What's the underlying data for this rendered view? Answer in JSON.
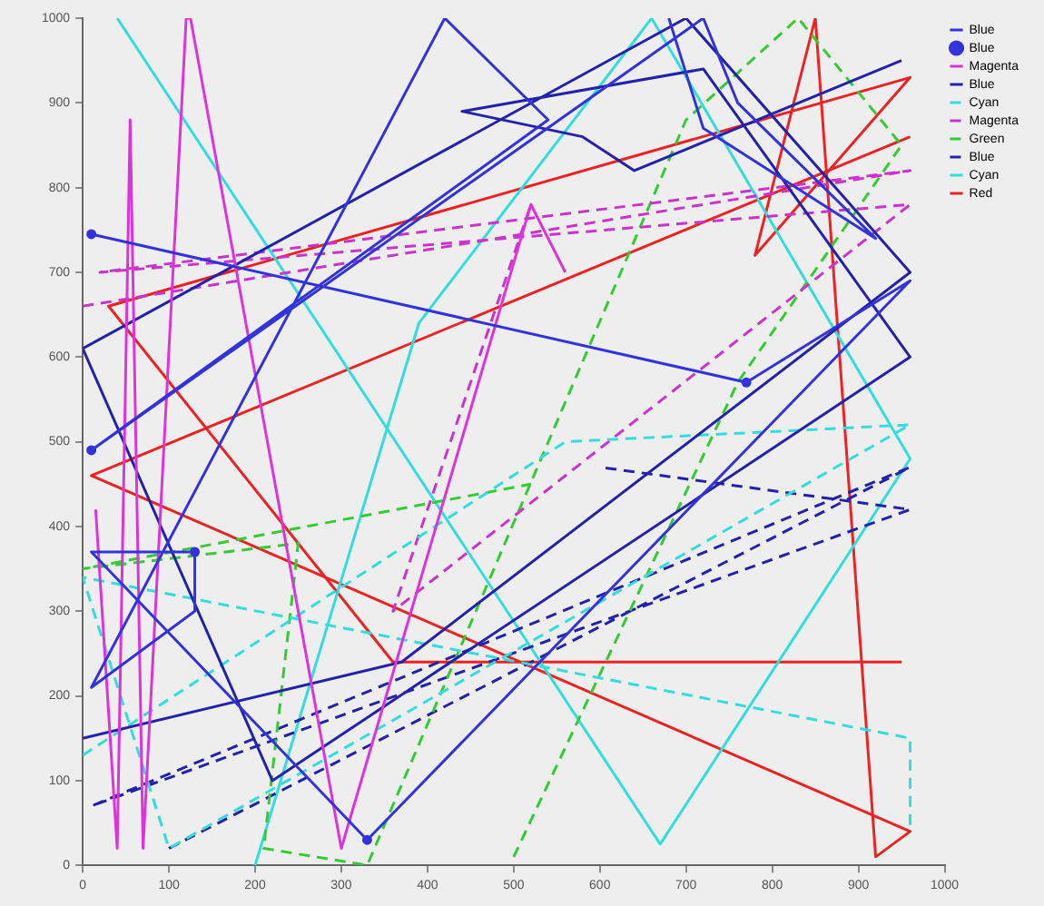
{
  "chart_data": {
    "type": "line",
    "xlim": [
      0,
      1000
    ],
    "ylim": [
      0,
      1000
    ],
    "xticks": [
      0,
      100,
      200,
      300,
      400,
      500,
      600,
      700,
      800,
      900,
      1000
    ],
    "yticks": [
      0,
      100,
      200,
      300,
      400,
      500,
      600,
      700,
      800,
      900,
      1000
    ],
    "grid": false,
    "legend": "top right",
    "marker": "none",
    "line_style": "solid",
    "series": [
      {
        "name": "Blue",
        "color": "#3333dd",
        "x": [
          10,
          770,
          960,
          330,
          10,
          130,
          130,
          10,
          420,
          540,
          10,
          720,
          760,
          920,
          720,
          680
        ],
        "values": [
          745,
          570,
          690,
          30,
          370,
          370,
          300,
          210,
          1000,
          880,
          490,
          1000,
          900,
          740,
          870,
          1000
        ]
      },
      {
        "name": "Blue",
        "color": "#3333dd",
        "type": "scatter",
        "marker": "circle",
        "x": [
          10,
          770,
          330,
          130,
          10
        ],
        "values": [
          745,
          570,
          30,
          370,
          490
        ]
      },
      {
        "name": "Magenta",
        "color": "#dd33dd",
        "x": [
          15,
          40,
          55,
          70,
          120,
          125,
          300,
          520,
          560
        ],
        "values": [
          420,
          20,
          880,
          20,
          1000,
          1000,
          20,
          780,
          700
        ]
      },
      {
        "name": "Blue",
        "color": "#2222aa",
        "x": [
          0,
          370,
          960,
          700,
          0,
          220,
          960,
          720,
          440,
          580,
          640,
          950
        ],
        "values": [
          150,
          240,
          700,
          1000,
          610,
          100,
          600,
          940,
          890,
          860,
          820,
          950
        ]
      },
      {
        "name": "Cyan",
        "color": "#33dddd",
        "line_style": "dashed",
        "x": [
          0,
          560,
          960,
          100,
          0,
          960,
          960
        ],
        "values": [
          130,
          500,
          520,
          20,
          340,
          150,
          40
        ]
      },
      {
        "name": "Magenta",
        "color": "#cc33cc",
        "line_style": "dashed",
        "x": [
          0,
          960,
          20,
          960,
          360,
          520
        ],
        "values": [
          660,
          820,
          700,
          780,
          300,
          780
        ]
      },
      {
        "name": "Green",
        "color": "#33cc33",
        "line_style": "dashed",
        "x": [
          500,
          760,
          950,
          830,
          700,
          330,
          210,
          250,
          0,
          520
        ],
        "values": [
          10,
          570,
          850,
          1000,
          880,
          0,
          20,
          380,
          350,
          450
        ]
      },
      {
        "name": "Blue",
        "color": "#2222aa",
        "line_style": "dashed",
        "x": [
          100,
          960,
          10,
          960,
          600
        ],
        "values": [
          20,
          470,
          70,
          420,
          470
        ]
      },
      {
        "name": "Cyan",
        "color": "#33dddd",
        "x": [
          40,
          670,
          960,
          660,
          390,
          200
        ],
        "values": [
          1000,
          25,
          480,
          1000,
          640,
          0
        ]
      },
      {
        "name": "Red",
        "color": "#ee2222",
        "x": [
          950,
          360,
          30,
          960,
          780,
          850,
          920,
          960,
          10,
          960
        ],
        "values": [
          240,
          240,
          660,
          930,
          720,
          1000,
          10,
          40,
          460,
          860
        ]
      }
    ]
  }
}
